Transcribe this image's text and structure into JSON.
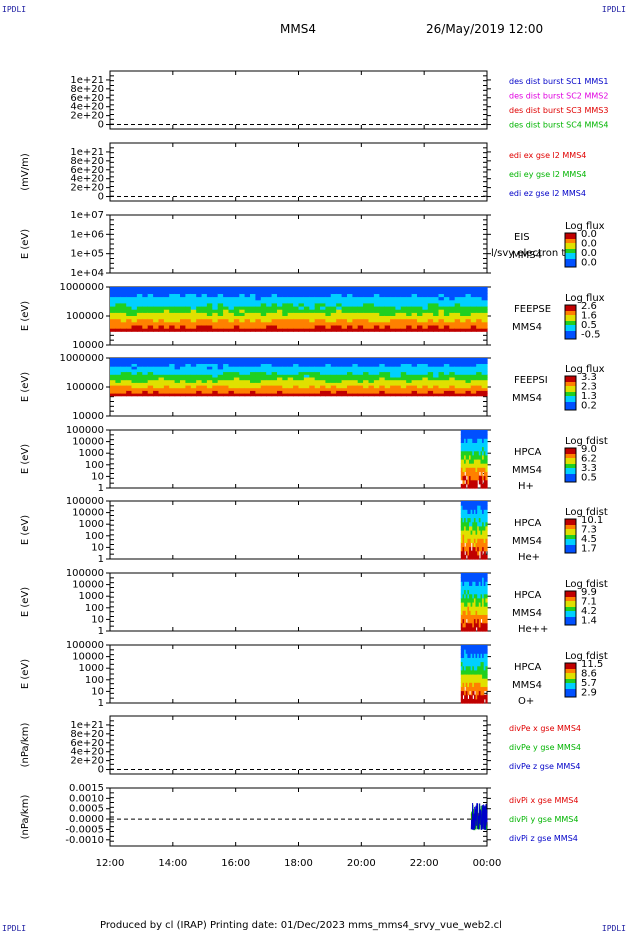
{
  "corner_label": "IPDLI",
  "header": {
    "spacecraft": "MMS4",
    "datetime": "26/May/2019 12:00"
  },
  "footer": {
    "text": "Produced by cl (IRAP)    Printing date: 01/Dec/2023    mms_mms4_srvy_vue_web2.cl"
  },
  "colors": {
    "mms1": "#0000c8",
    "mms2": "#e000e0",
    "mms3": "#e00000",
    "mms4": "#00b400",
    "ex": "#e00000",
    "ey": "#00b400",
    "ez": "#0000c8"
  },
  "chart_data": [
    {
      "type": "line",
      "ylabel": "",
      "ylim": [
        -1e+20,
        1.2e+21
      ],
      "yticks": [
        "1e+21",
        "8e+20",
        "6e+20",
        "4e+20",
        "2e+20",
        "0"
      ],
      "series": [
        {
          "name": "des dist burst SC1 MMS1",
          "color": "#0000c8"
        },
        {
          "name": "des dist burst SC2 MMS2",
          "color": "#e000e0"
        },
        {
          "name": "des dist burst SC3 MMS3",
          "color": "#e00000"
        },
        {
          "name": "des dist burst SC4 MMS4",
          "color": "#00b400"
        }
      ],
      "reference_line": 0
    },
    {
      "type": "line",
      "ylabel": "(mV/m)",
      "ylim": [
        -1e+20,
        1.2e+21
      ],
      "yticks": [
        "1e+21",
        "8e+20",
        "6e+20",
        "4e+20",
        "2e+20",
        "0"
      ],
      "series": [
        {
          "name": "edi ex gse l2 MMS4",
          "color": "#e00000"
        },
        {
          "name": "edi ey gse l2 MMS4",
          "color": "#00b400"
        },
        {
          "name": "edi ez gse l2 MMS4",
          "color": "#0000c8"
        }
      ],
      "reference_line": 0
    },
    {
      "type": "heatmap",
      "ylabel": "E (eV)",
      "yscale": "log",
      "ylim": [
        10000.0,
        10000000.0
      ],
      "yticks": [
        "1e+07",
        "1e+06",
        "1e+05",
        "1e+04"
      ],
      "instrument": "EIS",
      "instrument_sub": "MMS4",
      "overlay_text": "l/svy electron to",
      "colorbar": {
        "title": "Log flux",
        "ticks": [
          "0.0",
          "0.0",
          "0.0",
          "0.0"
        ]
      },
      "data_extent": null
    },
    {
      "type": "heatmap",
      "ylabel": "E (eV)",
      "yscale": "log",
      "ylim": [
        10000.0,
        1000000.0
      ],
      "yticks": [
        "1000000",
        "100000",
        "10000"
      ],
      "instrument": "FEEPSE",
      "instrument_sub": "MMS4",
      "colorbar": {
        "title": "Log flux",
        "ticks": [
          "2.6",
          "1.6",
          "0.5",
          "-0.5"
        ]
      },
      "data_extent": {
        "x_start": "12:00",
        "x_end": "24:00",
        "e_min": 30000,
        "e_max": 1000000
      }
    },
    {
      "type": "heatmap",
      "ylabel": "E (eV)",
      "yscale": "log",
      "ylim": [
        10000.0,
        1000000.0
      ],
      "yticks": [
        "1000000",
        "100000",
        "10000"
      ],
      "instrument": "FEEPSI",
      "instrument_sub": "MMS4",
      "colorbar": {
        "title": "Log flux",
        "ticks": [
          "3.3",
          "2.3",
          "1.3",
          "0.2"
        ]
      },
      "data_extent": {
        "x_start": "12:00",
        "x_end": "24:00",
        "e_min": 50000,
        "e_max": 1000000
      }
    },
    {
      "type": "heatmap",
      "ylabel": "E (eV)",
      "yscale": "log",
      "ylim": [
        1,
        100000.0
      ],
      "yticks": [
        "100000",
        "10000",
        "1000",
        "100",
        "10",
        "1"
      ],
      "instrument": "HPCA",
      "instrument_sub": "MMS4",
      "species": "H+",
      "colorbar": {
        "title": "Log fdist",
        "ticks": [
          "9.0",
          "6.2",
          "3.3",
          "0.5"
        ]
      },
      "data_extent": {
        "x_start": "23:10",
        "x_end": "24:00"
      }
    },
    {
      "type": "heatmap",
      "ylabel": "E (eV)",
      "yscale": "log",
      "ylim": [
        1,
        100000.0
      ],
      "yticks": [
        "100000",
        "10000",
        "1000",
        "100",
        "10",
        "1"
      ],
      "instrument": "HPCA",
      "instrument_sub": "MMS4",
      "species": "He+",
      "colorbar": {
        "title": "Log fdist",
        "ticks": [
          "10.1",
          "7.3",
          "4.5",
          "1.7"
        ]
      },
      "data_extent": {
        "x_start": "23:10",
        "x_end": "24:00"
      }
    },
    {
      "type": "heatmap",
      "ylabel": "E (eV)",
      "yscale": "log",
      "ylim": [
        1,
        100000.0
      ],
      "yticks": [
        "100000",
        "10000",
        "1000",
        "100",
        "10",
        "1"
      ],
      "instrument": "HPCA",
      "instrument_sub": "MMS4",
      "species": "He++",
      "colorbar": {
        "title": "Log fdist",
        "ticks": [
          "9.9",
          "7.1",
          "4.2",
          "1.4"
        ]
      },
      "data_extent": {
        "x_start": "23:10",
        "x_end": "24:00"
      }
    },
    {
      "type": "heatmap",
      "ylabel": "E (eV)",
      "yscale": "log",
      "ylim": [
        1,
        100000.0
      ],
      "yticks": [
        "100000",
        "10000",
        "1000",
        "100",
        "10",
        "1"
      ],
      "instrument": "HPCA",
      "instrument_sub": "MMS4",
      "species": "O+",
      "colorbar": {
        "title": "Log fdist",
        "ticks": [
          "11.5",
          "8.6",
          "5.7",
          "2.9"
        ]
      },
      "data_extent": {
        "x_start": "23:10",
        "x_end": "24:00"
      }
    },
    {
      "type": "line",
      "ylabel": "(nPa/km)",
      "ylim": [
        -1e+20,
        1.2e+21
      ],
      "yticks": [
        "1e+21",
        "8e+20",
        "6e+20",
        "4e+20",
        "2e+20",
        "0"
      ],
      "series": [
        {
          "name": "divPe x gse MMS4",
          "color": "#e00000"
        },
        {
          "name": "divPe y gse MMS4",
          "color": "#00b400"
        },
        {
          "name": "divPe z gse MMS4",
          "color": "#0000c8"
        }
      ],
      "reference_line": 0
    },
    {
      "type": "line",
      "ylabel": "(nPa/km)",
      "ylim": [
        -0.0013,
        0.0015
      ],
      "yticks": [
        "0.0015",
        "0.0010",
        "0.0005",
        "0.0000",
        "-0.0005",
        "-0.0010"
      ],
      "series": [
        {
          "name": "divPi x gse MMS4",
          "color": "#e00000"
        },
        {
          "name": "divPi y gse MMS4",
          "color": "#00b400"
        },
        {
          "name": "divPi z gse MMS4",
          "color": "#0000c8"
        }
      ],
      "reference_line": 0,
      "data_extent": {
        "x_start": "23:30",
        "x_end": "24:00",
        "y_min": -0.0005,
        "y_max": 0.0008
      }
    }
  ],
  "x_axis": {
    "ticks": [
      "12:00",
      "14:00",
      "16:00",
      "18:00",
      "20:00",
      "22:00",
      "00:00"
    ],
    "range_hours": [
      12,
      24
    ]
  }
}
